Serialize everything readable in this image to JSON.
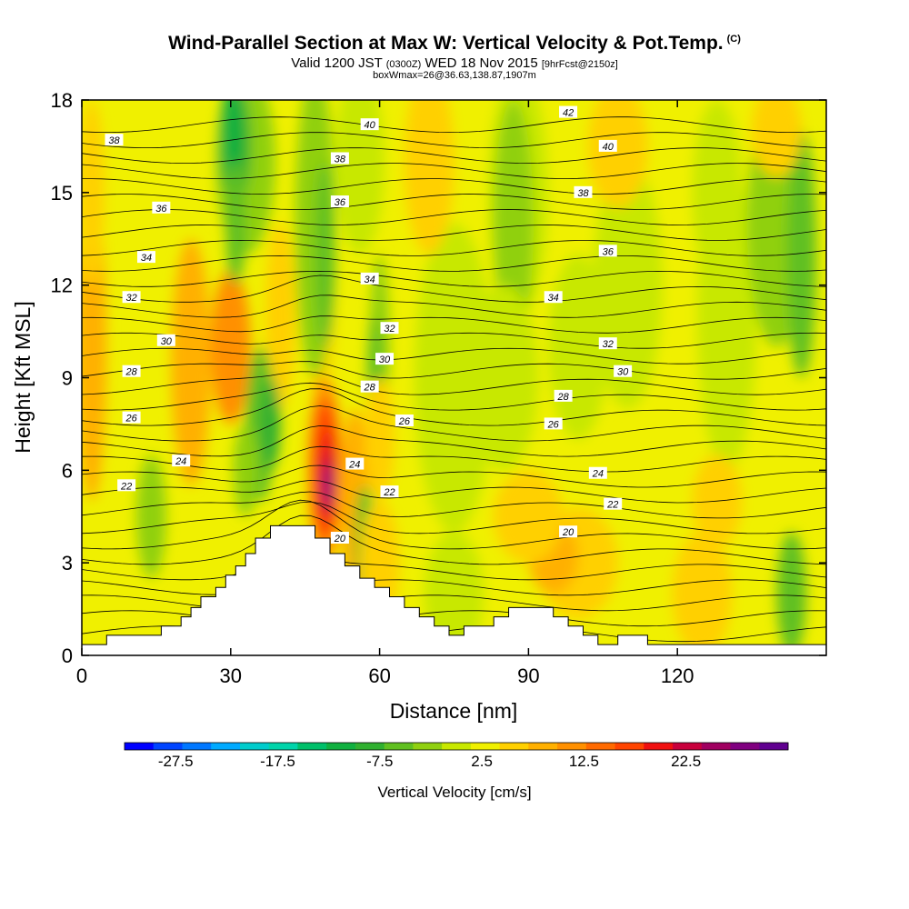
{
  "header": {
    "title": "Wind-Parallel Section at Max W: Vertical Velocity & Pot.Temp.",
    "copyright": "(C)",
    "valid_prefix": "Valid 1200 JST",
    "valid_z": "(0300Z)",
    "valid_date": "WED 18 Nov 2015",
    "forecast_info": "[9hrFcst@2150z]",
    "box_info": "boxWmax=26@36.63,138.87,1907m"
  },
  "chart_data": {
    "type": "heatmap",
    "title": "Wind-Parallel Section at Max W: Vertical Velocity & Pot.Temp.",
    "xlabel": "Distance [nm]",
    "ylabel": "Height [Kft MSL]",
    "xlim": [
      0,
      150
    ],
    "ylim": [
      0,
      18
    ],
    "xticks": [
      "0",
      "30",
      "60",
      "90",
      "120"
    ],
    "yticks": [
      "0",
      "3",
      "6",
      "9",
      "12",
      "15",
      "18"
    ],
    "colorbar": {
      "title": "Vertical Velocity [cm/s]",
      "tick_labels": [
        "-27.5",
        "-17.5",
        "-7.5",
        "2.5",
        "12.5",
        "22.5"
      ],
      "colors": [
        "#0000ff",
        "#0044ff",
        "#0077ff",
        "#00aaff",
        "#00cccc",
        "#00d4aa",
        "#00c06a",
        "#10b040",
        "#30b030",
        "#60c020",
        "#90d010",
        "#c8e800",
        "#f0f000",
        "#ffd000",
        "#ffb000",
        "#ff9000",
        "#ff6a00",
        "#ff4400",
        "#f01010",
        "#c8003c",
        "#a00060",
        "#800080",
        "#600090"
      ]
    },
    "terrain_profile": [
      [
        0,
        0.35
      ],
      [
        5,
        0.35
      ],
      [
        5,
        0.65
      ],
      [
        16,
        0.65
      ],
      [
        16,
        0.95
      ],
      [
        20,
        0.95
      ],
      [
        20,
        1.25
      ],
      [
        22,
        1.25
      ],
      [
        22,
        1.55
      ],
      [
        24,
        1.55
      ],
      [
        24,
        1.9
      ],
      [
        27,
        1.9
      ],
      [
        27,
        2.2
      ],
      [
        29,
        2.2
      ],
      [
        29,
        2.6
      ],
      [
        31,
        2.6
      ],
      [
        31,
        2.9
      ],
      [
        33,
        2.9
      ],
      [
        33,
        3.3
      ],
      [
        35,
        3.3
      ],
      [
        35,
        3.8
      ],
      [
        38,
        3.8
      ],
      [
        38,
        4.2
      ],
      [
        47,
        4.2
      ],
      [
        47,
        3.8
      ],
      [
        50,
        3.8
      ],
      [
        50,
        3.3
      ],
      [
        53,
        3.3
      ],
      [
        53,
        2.9
      ],
      [
        56,
        2.9
      ],
      [
        56,
        2.5
      ],
      [
        59,
        2.5
      ],
      [
        59,
        2.2
      ],
      [
        62,
        2.2
      ],
      [
        62,
        1.9
      ],
      [
        65,
        1.9
      ],
      [
        65,
        1.55
      ],
      [
        68,
        1.55
      ],
      [
        68,
        1.25
      ],
      [
        71,
        1.25
      ],
      [
        71,
        0.95
      ],
      [
        74,
        0.95
      ],
      [
        74,
        0.65
      ],
      [
        77,
        0.65
      ],
      [
        77,
        0.95
      ],
      [
        83,
        0.95
      ],
      [
        83,
        1.25
      ],
      [
        86,
        1.25
      ],
      [
        86,
        1.55
      ],
      [
        95,
        1.55
      ],
      [
        95,
        1.25
      ],
      [
        98,
        1.25
      ],
      [
        98,
        0.95
      ],
      [
        101,
        0.95
      ],
      [
        101,
        0.65
      ],
      [
        104,
        0.65
      ],
      [
        104,
        0.35
      ],
      [
        108,
        0.35
      ],
      [
        108,
        0.65
      ],
      [
        114,
        0.65
      ],
      [
        114,
        0.35
      ],
      [
        150,
        0.35
      ],
      [
        150,
        0.35
      ]
    ],
    "contour_labels": [
      {
        "value": "38",
        "x": 6.5,
        "y": 16.7
      },
      {
        "value": "40",
        "x": 58,
        "y": 17.2
      },
      {
        "value": "42",
        "x": 98,
        "y": 17.6
      },
      {
        "value": "38",
        "x": 52,
        "y": 16.1
      },
      {
        "value": "40",
        "x": 106,
        "y": 16.5
      },
      {
        "value": "36",
        "x": 16,
        "y": 14.5
      },
      {
        "value": "36",
        "x": 52,
        "y": 14.7
      },
      {
        "value": "38",
        "x": 101,
        "y": 15.0
      },
      {
        "value": "34",
        "x": 13,
        "y": 12.9
      },
      {
        "value": "36",
        "x": 106,
        "y": 13.1
      },
      {
        "value": "34",
        "x": 58,
        "y": 12.2
      },
      {
        "value": "32",
        "x": 10,
        "y": 11.6
      },
      {
        "value": "34",
        "x": 95,
        "y": 11.6
      },
      {
        "value": "32",
        "x": 62,
        "y": 10.6
      },
      {
        "value": "30",
        "x": 17,
        "y": 10.2
      },
      {
        "value": "32",
        "x": 106,
        "y": 10.1
      },
      {
        "value": "30",
        "x": 61,
        "y": 9.6
      },
      {
        "value": "28",
        "x": 10,
        "y": 9.2
      },
      {
        "value": "30",
        "x": 109,
        "y": 9.2
      },
      {
        "value": "28",
        "x": 58,
        "y": 8.7
      },
      {
        "value": "28",
        "x": 97,
        "y": 8.4
      },
      {
        "value": "26",
        "x": 10,
        "y": 7.7
      },
      {
        "value": "26",
        "x": 65,
        "y": 7.6
      },
      {
        "value": "26",
        "x": 95,
        "y": 7.5
      },
      {
        "value": "24",
        "x": 20,
        "y": 6.3
      },
      {
        "value": "24",
        "x": 55,
        "y": 6.2
      },
      {
        "value": "24",
        "x": 104,
        "y": 5.9
      },
      {
        "value": "22",
        "x": 9,
        "y": 5.5
      },
      {
        "value": "22",
        "x": 62,
        "y": 5.3
      },
      {
        "value": "22",
        "x": 107,
        "y": 4.9
      },
      {
        "value": "20",
        "x": 52,
        "y": 3.8
      },
      {
        "value": "20",
        "x": 98,
        "y": 4.0
      }
    ]
  }
}
